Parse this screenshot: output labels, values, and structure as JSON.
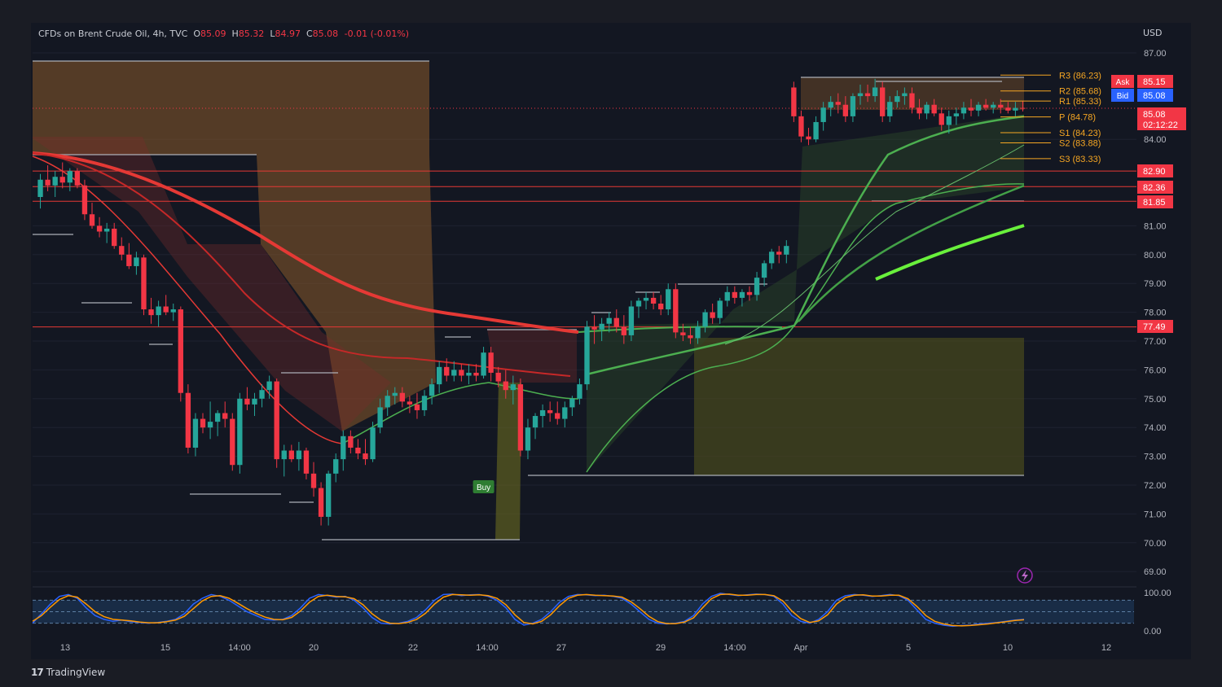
{
  "header": {
    "symbol": "CFDs on Brent Crude Oil, 4h, TVC",
    "open_label": "O",
    "open": "85.09",
    "high_label": "H",
    "high": "85.32",
    "low_label": "L",
    "low": "84.97",
    "close_label": "C",
    "close": "85.08",
    "change": "-0.01 (-0.01%)"
  },
  "currency": "USD",
  "brand": {
    "logo": "17",
    "name": "TradingView"
  },
  "colors": {
    "background": "#131722",
    "up": "#26a69a",
    "down": "#f23645",
    "pivot": "#f5a623",
    "bull_line": "#4caf50",
    "bear_line": "#e53935",
    "oscillator_k": "#2962ff",
    "oscillator_d": "#ff9800"
  },
  "chart_data": {
    "type": "line",
    "subtype": "candlestick",
    "x_ticks": [
      "13",
      "15",
      "14:00",
      "20",
      "22",
      "14:00",
      "27",
      "29",
      "14:00",
      "Apr",
      "5",
      "10",
      "12"
    ],
    "y_ticks": [
      "87.00",
      "84.00",
      "81.00",
      "80.00",
      "79.00",
      "78.00",
      "77.00",
      "76.00",
      "75.00",
      "74.00",
      "73.00",
      "72.00",
      "71.00",
      "70.00",
      "69.00"
    ],
    "ylim": [
      68.5,
      87.5
    ],
    "price_labels": [
      {
        "label": "Ask",
        "value": "85.15",
        "color": "#f23645"
      },
      {
        "label": "Bid",
        "value": "85.08",
        "color": "#2962ff"
      },
      {
        "label": "",
        "value": "85.08",
        "sub": "02:12:22",
        "color": "#f23645"
      },
      {
        "label": "",
        "value": "82.90",
        "color": "#f23645"
      },
      {
        "label": "",
        "value": "82.36",
        "color": "#f23645"
      },
      {
        "label": "",
        "value": "81.85",
        "color": "#f23645"
      },
      {
        "label": "",
        "value": "77.49",
        "color": "#f23645"
      }
    ],
    "pivots": [
      {
        "label": "R3 (86.23)",
        "value": 86.23
      },
      {
        "label": "R2 (85.68)",
        "value": 85.68
      },
      {
        "label": "R1 (85.33)",
        "value": 85.33
      },
      {
        "label": "P (84.78)",
        "value": 84.78
      },
      {
        "label": "S1 (84.23)",
        "value": 84.23
      },
      {
        "label": "S2 (83.88)",
        "value": 83.88
      },
      {
        "label": "S3 (83.33)",
        "value": 83.33
      }
    ],
    "horizontal_levels": [
      82.9,
      82.36,
      81.85,
      77.49
    ],
    "signal": {
      "label": "Buy",
      "index": 60
    },
    "candles": [
      [
        82.0,
        82.8,
        81.6,
        82.6
      ],
      [
        82.6,
        83.1,
        82.2,
        82.4
      ],
      [
        82.4,
        82.9,
        82.0,
        82.7
      ],
      [
        82.7,
        83.2,
        82.3,
        82.5
      ],
      [
        82.5,
        83.0,
        82.2,
        82.9
      ],
      [
        82.9,
        83.0,
        82.3,
        82.4
      ],
      [
        82.4,
        82.6,
        81.2,
        81.4
      ],
      [
        81.4,
        81.8,
        80.9,
        81.0
      ],
      [
        81.0,
        81.3,
        80.6,
        80.8
      ],
      [
        80.8,
        81.1,
        80.4,
        80.9
      ],
      [
        80.9,
        81.1,
        80.2,
        80.3
      ],
      [
        80.3,
        80.6,
        79.8,
        80.0
      ],
      [
        80.0,
        80.4,
        79.5,
        79.6
      ],
      [
        79.6,
        80.1,
        79.3,
        79.9
      ],
      [
        79.9,
        80.0,
        77.9,
        78.1
      ],
      [
        78.1,
        78.5,
        77.6,
        77.9
      ],
      [
        77.9,
        78.4,
        77.5,
        78.2
      ],
      [
        78.2,
        78.6,
        77.9,
        78.0
      ],
      [
        78.0,
        78.3,
        77.7,
        78.1
      ],
      [
        78.1,
        78.2,
        74.9,
        75.2
      ],
      [
        75.2,
        75.5,
        73.1,
        73.3
      ],
      [
        73.3,
        74.5,
        73.0,
        74.3
      ],
      [
        74.3,
        74.5,
        73.8,
        74.0
      ],
      [
        74.0,
        74.9,
        73.6,
        74.2
      ],
      [
        74.2,
        74.6,
        73.7,
        74.5
      ],
      [
        74.5,
        74.9,
        74.0,
        74.3
      ],
      [
        74.3,
        74.5,
        72.5,
        72.7
      ],
      [
        72.7,
        75.2,
        72.4,
        75.0
      ],
      [
        75.0,
        75.4,
        74.6,
        74.8
      ],
      [
        74.8,
        75.2,
        74.4,
        75.0
      ],
      [
        75.0,
        75.5,
        74.7,
        75.3
      ],
      [
        75.3,
        75.8,
        75.0,
        75.6
      ],
      [
        75.6,
        75.7,
        72.6,
        72.9
      ],
      [
        72.9,
        73.4,
        72.3,
        73.2
      ],
      [
        73.2,
        73.4,
        72.8,
        72.9
      ],
      [
        72.9,
        73.5,
        72.5,
        73.2
      ],
      [
        73.2,
        73.3,
        72.2,
        72.4
      ],
      [
        72.4,
        72.8,
        71.6,
        71.9
      ],
      [
        71.9,
        72.1,
        70.6,
        70.9
      ],
      [
        70.9,
        72.5,
        70.6,
        72.4
      ],
      [
        72.4,
        73.1,
        72.1,
        72.9
      ],
      [
        72.9,
        73.9,
        72.5,
        73.7
      ],
      [
        73.7,
        73.9,
        73.1,
        73.3
      ],
      [
        73.3,
        73.6,
        72.9,
        73.1
      ],
      [
        73.1,
        73.6,
        72.7,
        72.9
      ],
      [
        72.9,
        74.2,
        72.8,
        74.0
      ],
      [
        74.0,
        75.0,
        73.8,
        74.7
      ],
      [
        74.7,
        75.3,
        74.4,
        75.1
      ],
      [
        75.1,
        75.4,
        74.8,
        75.2
      ],
      [
        75.2,
        75.4,
        74.7,
        74.9
      ],
      [
        74.9,
        75.1,
        74.5,
        74.8
      ],
      [
        74.8,
        75.2,
        74.3,
        74.6
      ],
      [
        74.6,
        75.3,
        74.4,
        75.1
      ],
      [
        75.1,
        75.7,
        74.8,
        75.5
      ],
      [
        75.5,
        76.3,
        75.2,
        76.1
      ],
      [
        76.1,
        76.4,
        75.6,
        75.8
      ],
      [
        75.8,
        76.3,
        75.6,
        76.0
      ],
      [
        76.0,
        76.2,
        75.6,
        75.8
      ],
      [
        75.8,
        76.2,
        75.5,
        75.9
      ],
      [
        75.9,
        76.2,
        75.6,
        75.8
      ],
      [
        75.8,
        76.8,
        75.7,
        76.6
      ],
      [
        76.6,
        76.8,
        75.6,
        75.9
      ],
      [
        75.9,
        76.1,
        75.4,
        75.6
      ],
      [
        75.6,
        76.0,
        75.0,
        75.3
      ],
      [
        75.3,
        75.8,
        74.8,
        75.5
      ],
      [
        75.5,
        75.7,
        73.0,
        73.2
      ],
      [
        73.2,
        74.3,
        72.9,
        74.0
      ],
      [
        74.0,
        74.5,
        73.6,
        74.4
      ],
      [
        74.4,
        74.8,
        74.0,
        74.6
      ],
      [
        74.6,
        74.9,
        74.2,
        74.5
      ],
      [
        74.5,
        74.9,
        74.1,
        74.3
      ],
      [
        74.3,
        74.9,
        74.0,
        74.7
      ],
      [
        74.7,
        75.1,
        74.4,
        75.0
      ],
      [
        75.0,
        75.7,
        74.8,
        75.5
      ],
      [
        75.5,
        77.7,
        75.3,
        77.5
      ],
      [
        77.5,
        77.9,
        76.9,
        77.4
      ],
      [
        77.4,
        77.8,
        77.0,
        77.6
      ],
      [
        77.6,
        78.0,
        77.3,
        77.8
      ],
      [
        77.8,
        78.1,
        77.3,
        77.5
      ],
      [
        77.5,
        77.9,
        76.9,
        77.2
      ],
      [
        77.2,
        78.4,
        77.0,
        78.2
      ],
      [
        78.2,
        78.5,
        77.8,
        78.4
      ],
      [
        78.4,
        78.7,
        78.1,
        78.5
      ],
      [
        78.5,
        78.7,
        78.1,
        78.3
      ],
      [
        78.3,
        78.6,
        77.9,
        78.1
      ],
      [
        78.1,
        79.0,
        77.9,
        78.8
      ],
      [
        78.8,
        79.0,
        77.1,
        77.3
      ],
      [
        77.3,
        77.6,
        77.0,
        77.2
      ],
      [
        77.2,
        77.5,
        76.9,
        77.1
      ],
      [
        77.1,
        77.7,
        76.9,
        77.5
      ],
      [
        77.5,
        78.1,
        77.3,
        78.0
      ],
      [
        78.0,
        78.3,
        77.6,
        77.8
      ],
      [
        77.8,
        78.5,
        77.6,
        78.4
      ],
      [
        78.4,
        78.9,
        78.2,
        78.7
      ],
      [
        78.7,
        78.9,
        78.3,
        78.5
      ],
      [
        78.5,
        78.8,
        78.2,
        78.7
      ],
      [
        78.7,
        78.9,
        78.4,
        78.6
      ],
      [
        78.6,
        79.4,
        78.4,
        79.2
      ],
      [
        79.2,
        79.8,
        78.9,
        79.7
      ],
      [
        79.7,
        80.2,
        79.5,
        80.1
      ],
      [
        80.1,
        80.3,
        79.7,
        80.0
      ],
      [
        80.0,
        80.5,
        79.7,
        80.3
      ],
      [
        85.8,
        86.0,
        84.6,
        84.8
      ],
      [
        84.8,
        85.0,
        83.9,
        84.1
      ],
      [
        84.1,
        84.4,
        83.8,
        84.0
      ],
      [
        84.0,
        84.8,
        83.9,
        84.6
      ],
      [
        84.6,
        85.3,
        84.3,
        85.1
      ],
      [
        85.1,
        85.5,
        84.8,
        85.3
      ],
      [
        85.3,
        85.6,
        84.9,
        85.2
      ],
      [
        85.2,
        85.5,
        84.6,
        84.8
      ],
      [
        84.8,
        85.6,
        84.6,
        85.5
      ],
      [
        85.5,
        85.9,
        85.2,
        85.6
      ],
      [
        85.6,
        85.9,
        85.3,
        85.5
      ],
      [
        85.5,
        86.1,
        85.3,
        85.8
      ],
      [
        85.8,
        86.0,
        84.6,
        84.8
      ],
      [
        84.8,
        85.5,
        84.6,
        85.3
      ],
      [
        85.3,
        85.7,
        85.1,
        85.5
      ],
      [
        85.5,
        85.8,
        85.2,
        85.6
      ],
      [
        85.6,
        85.8,
        84.9,
        85.1
      ],
      [
        85.1,
        85.4,
        84.7,
        84.9
      ],
      [
        84.9,
        85.3,
        84.7,
        85.2
      ],
      [
        85.2,
        85.4,
        84.8,
        84.9
      ],
      [
        84.9,
        85.1,
        84.3,
        84.5
      ],
      [
        84.5,
        85.0,
        84.2,
        84.8
      ],
      [
        84.8,
        85.1,
        84.5,
        84.9
      ],
      [
        84.9,
        85.3,
        84.7,
        85.1
      ],
      [
        85.1,
        85.4,
        84.8,
        85.0
      ],
      [
        85.0,
        85.3,
        84.8,
        85.2
      ],
      [
        85.2,
        85.4,
        85.0,
        85.1
      ],
      [
        85.1,
        85.3,
        84.9,
        85.2
      ],
      [
        85.2,
        85.4,
        84.9,
        85.1
      ],
      [
        85.1,
        85.3,
        84.9,
        85.0
      ],
      [
        85.0,
        85.3,
        84.8,
        85.09
      ],
      [
        85.09,
        85.32,
        84.97,
        85.08
      ]
    ],
    "oscillator": {
      "y_ticks": [
        "100.00",
        "0.00"
      ],
      "ylim": [
        0,
        100
      ],
      "k": [
        20,
        45,
        70,
        90,
        95,
        85,
        60,
        40,
        30,
        25,
        28,
        24,
        22,
        20,
        22,
        25,
        30,
        45,
        70,
        85,
        95,
        90,
        80,
        65,
        50,
        40,
        30,
        28,
        30,
        40,
        60,
        85,
        95,
        92,
        88,
        90,
        80,
        60,
        35,
        20,
        18,
        20,
        25,
        35,
        55,
        80,
        95,
        96,
        92,
        94,
        95,
        90,
        80,
        60,
        30,
        15,
        20,
        30,
        50,
        75,
        90,
        95,
        94,
        92,
        93,
        90,
        85,
        70,
        50,
        30,
        20,
        18,
        20,
        25,
        40,
        70,
        90,
        98,
        95,
        92,
        94,
        96,
        95,
        90,
        70,
        40,
        25,
        20,
        30,
        50,
        80,
        92,
        95,
        93,
        90,
        92,
        95,
        92,
        80,
        55,
        30,
        20,
        15,
        12,
        14,
        15,
        18,
        20,
        22,
        25,
        28,
        30
      ],
      "d": [
        25,
        40,
        62,
        82,
        92,
        88,
        70,
        50,
        37,
        30,
        28,
        26,
        23,
        21,
        21,
        24,
        28,
        38,
        58,
        78,
        90,
        92,
        85,
        72,
        58,
        46,
        36,
        30,
        29,
        35,
        52,
        75,
        90,
        93,
        90,
        89,
        84,
        68,
        45,
        28,
        20,
        19,
        22,
        30,
        46,
        70,
        88,
        95,
        94,
        93,
        94,
        92,
        85,
        68,
        42,
        22,
        18,
        25,
        42,
        66,
        85,
        93,
        95,
        93,
        92,
        91,
        88,
        76,
        58,
        38,
        24,
        19,
        19,
        23,
        34,
        60,
        84,
        95,
        96,
        93,
        93,
        95,
        95,
        92,
        78,
        52,
        32,
        22,
        26,
        42,
        70,
        87,
        93,
        94,
        91,
        91,
        93,
        93,
        84,
        64,
        40,
        25,
        18,
        14,
        13,
        14,
        16,
        18,
        21,
        24,
        27,
        29
      ]
    }
  }
}
